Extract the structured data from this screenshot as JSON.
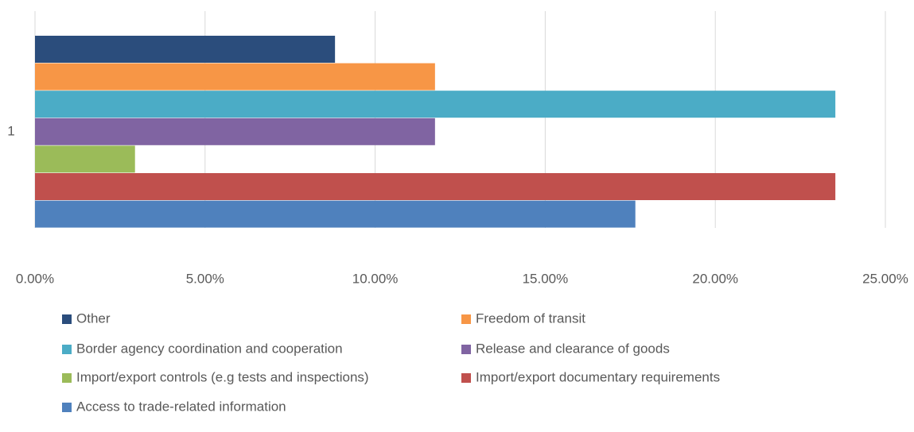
{
  "chart_data": {
    "type": "bar",
    "orientation": "horizontal",
    "categories": [
      "1"
    ],
    "series": [
      {
        "name": "Other",
        "color": "#2b4d7c",
        "values": [
          8.82
        ]
      },
      {
        "name": "Freedom of transit",
        "color": "#f79646",
        "values": [
          11.76
        ]
      },
      {
        "name": "Border agency coordination and cooperation",
        "color": "#4bacc6",
        "values": [
          23.53
        ]
      },
      {
        "name": "Release and clearance of goods",
        "color": "#8064a2",
        "values": [
          11.76
        ]
      },
      {
        "name": "Import/export controls (e.g tests and inspections)",
        "color": "#9bbb59",
        "values": [
          2.94
        ]
      },
      {
        "name": "Import/export documentary requirements",
        "color": "#c0504d",
        "values": [
          23.53
        ]
      },
      {
        "name": "Access to trade-related information",
        "color": "#4f81bd",
        "values": [
          17.65
        ]
      }
    ],
    "xlim": [
      0,
      25
    ],
    "xticks": [
      {
        "value": 0,
        "label": "0.00%"
      },
      {
        "value": 5,
        "label": "5.00%"
      },
      {
        "value": 10,
        "label": "10.00%"
      },
      {
        "value": 15,
        "label": "15.00%"
      },
      {
        "value": 20,
        "label": "20.00%"
      },
      {
        "value": 25,
        "label": "25.00%"
      }
    ],
    "grid": true,
    "legend": "bottom"
  }
}
